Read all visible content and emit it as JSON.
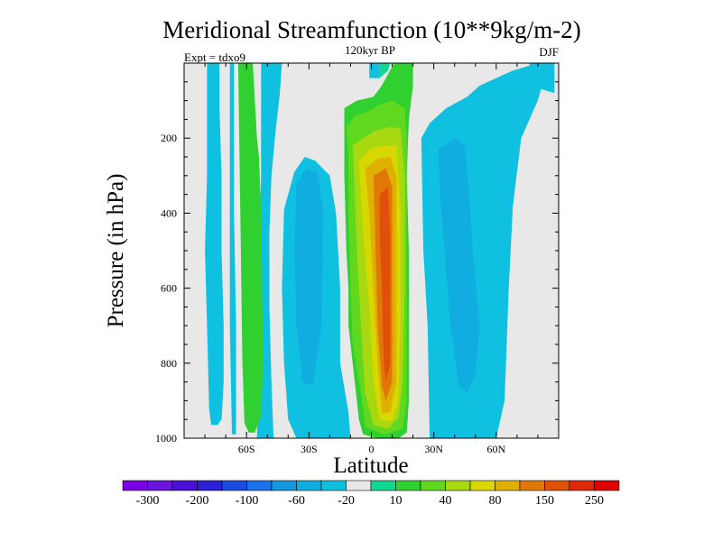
{
  "chart_data": {
    "type": "heatmap",
    "title": "Meridional Streamfunction (10**9kg/m-2)",
    "center_label": "120kyr BP",
    "left_label": "Expt = tdxo9",
    "right_label": "DJF",
    "xlabel": "Latitude",
    "ylabel": "Pressure (in hPa)",
    "xlim": [
      -90,
      90
    ],
    "ylim": [
      0,
      1000
    ],
    "y_reversed": true,
    "x_ticks": [
      {
        "value": -60,
        "label": "60S"
      },
      {
        "value": -30,
        "label": "30S"
      },
      {
        "value": 0,
        "label": "0"
      },
      {
        "value": 30,
        "label": "30N"
      },
      {
        "value": 60,
        "label": "60N"
      }
    ],
    "y_ticks": [
      {
        "value": 200,
        "label": "200"
      },
      {
        "value": 400,
        "label": "400"
      },
      {
        "value": 600,
        "label": "600"
      },
      {
        "value": 800,
        "label": "800"
      },
      {
        "value": 1000,
        "label": "1000"
      }
    ],
    "colorbar": {
      "colors": [
        "#7a00e6",
        "#6a14e0",
        "#4b10d8",
        "#2b20d8",
        "#1a4ae0",
        "#1a73e8",
        "#1596e0",
        "#10aee0",
        "#10c0e0",
        "#e8e8e8",
        "#10d890",
        "#30d030",
        "#60d820",
        "#a8d810",
        "#d8d800",
        "#e0b000",
        "#e07808",
        "#e05008",
        "#e02808",
        "#e00000"
      ],
      "labels": [
        {
          "boundary": 1,
          "label": "-300"
        },
        {
          "boundary": 3,
          "label": "-200"
        },
        {
          "boundary": 5,
          "label": "-100"
        },
        {
          "boundary": 7,
          "label": "-60"
        },
        {
          "boundary": 9,
          "label": "-20"
        },
        {
          "boundary": 11,
          "label": "10"
        },
        {
          "boundary": 13,
          "label": "40"
        },
        {
          "boundary": 15,
          "label": "80"
        },
        {
          "boundary": 17,
          "label": "150"
        },
        {
          "boundary": 19,
          "label": "250"
        }
      ]
    },
    "colors": {
      "background": "#e8e8e8",
      "neg_weak": "#10c0e0",
      "neg_mid": "#10aee0",
      "pos_weak": "#30d030",
      "pos_teal": "#10d890",
      "pos_yellowgreen": "#a8d810",
      "pos_lime": "#60d820",
      "pos_yellow": "#d8d800",
      "pos_gold": "#e0b000",
      "pos_orange": "#e07808",
      "pos_redorange": "#e05008"
    },
    "regions": [
      {
        "name": "neg-band-80s",
        "color": "neg_weak",
        "points": [
          [
            -79,
            0
          ],
          [
            -73,
            0
          ],
          [
            -73,
            120
          ],
          [
            -72,
            300
          ],
          [
            -72,
            500
          ],
          [
            -71,
            700
          ],
          [
            -71,
            850
          ],
          [
            -72,
            950
          ],
          [
            -74,
            965
          ],
          [
            -77,
            965
          ],
          [
            -78,
            920
          ],
          [
            -79,
            700
          ],
          [
            -80,
            500
          ],
          [
            -79,
            300
          ]
        ]
      },
      {
        "name": "neg-strip-65s",
        "color": "neg_weak",
        "points": [
          [
            -68,
            0
          ],
          [
            -66,
            0
          ],
          [
            -66,
            400
          ],
          [
            -65,
            700
          ],
          [
            -65,
            990
          ],
          [
            -67,
            990
          ],
          [
            -68,
            700
          ]
        ]
      },
      {
        "name": "neg-band-45s",
        "color": "neg_weak",
        "points": [
          [
            -53,
            0
          ],
          [
            -43,
            0
          ],
          [
            -44,
            80
          ],
          [
            -46,
            180
          ],
          [
            -48,
            300
          ],
          [
            -49,
            450
          ],
          [
            -49,
            650
          ],
          [
            -48,
            850
          ],
          [
            -47,
            1000
          ],
          [
            -55,
            1000
          ],
          [
            -54,
            800
          ],
          [
            -54,
            500
          ],
          [
            -53,
            300
          ]
        ]
      },
      {
        "name": "neg-band-25s",
        "color": "neg_weak",
        "points": [
          [
            -42,
            390
          ],
          [
            -37,
            290
          ],
          [
            -32,
            250
          ],
          [
            -27,
            260
          ],
          [
            -20,
            300
          ],
          [
            -17,
            400
          ],
          [
            -15,
            600
          ],
          [
            -15,
            800
          ],
          [
            -11,
            930
          ],
          [
            -10,
            1000
          ],
          [
            -36,
            1000
          ],
          [
            -40,
            950
          ],
          [
            -42,
            800
          ],
          [
            -43,
            600
          ]
        ]
      },
      {
        "name": "neg-core-25s",
        "color": "neg_mid",
        "points": [
          [
            -36,
            320
          ],
          [
            -31,
            280
          ],
          [
            -26,
            290
          ],
          [
            -23,
            400
          ],
          [
            -24,
            700
          ],
          [
            -28,
            860
          ],
          [
            -33,
            850
          ],
          [
            -36,
            700
          ],
          [
            -37,
            500
          ]
        ]
      },
      {
        "name": "neg-patch-0",
        "color": "neg_weak",
        "points": [
          [
            -1,
            0
          ],
          [
            4,
            0
          ],
          [
            4,
            40
          ],
          [
            -1,
            40
          ]
        ]
      },
      {
        "name": "neg-band-35n",
        "color": "neg_weak",
        "points": [
          [
            24,
            200
          ],
          [
            28,
            160
          ],
          [
            36,
            120
          ],
          [
            46,
            90
          ],
          [
            52,
            60
          ],
          [
            60,
            40
          ],
          [
            68,
            20
          ],
          [
            80,
            0
          ],
          [
            85,
            0
          ],
          [
            80,
            100
          ],
          [
            72,
            200
          ],
          [
            68,
            380
          ],
          [
            66,
            600
          ],
          [
            64,
            900
          ],
          [
            60,
            1000
          ],
          [
            28,
            1000
          ],
          [
            27,
            700
          ],
          [
            25,
            500
          ]
        ]
      },
      {
        "name": "neg-core-45n",
        "color": "neg_mid",
        "points": [
          [
            32,
            230
          ],
          [
            40,
            200
          ],
          [
            45,
            220
          ],
          [
            47,
            350
          ],
          [
            49,
            520
          ],
          [
            52,
            700
          ],
          [
            50,
            830
          ],
          [
            46,
            880
          ],
          [
            42,
            860
          ],
          [
            38,
            700
          ],
          [
            35,
            500
          ],
          [
            33,
            350
          ]
        ]
      },
      {
        "name": "neg-strip-90n",
        "color": "neg_weak",
        "points": [
          [
            76,
            0
          ],
          [
            88,
            0
          ],
          [
            88,
            80
          ],
          [
            76,
            60
          ]
        ]
      },
      {
        "name": "pos-band-60s",
        "color": "pos_weak",
        "points": [
          [
            -64,
            0
          ],
          [
            -57,
            0
          ],
          [
            -56,
            100
          ],
          [
            -55,
            200
          ],
          [
            -54,
            250
          ],
          [
            -53,
            400
          ],
          [
            -52,
            800
          ],
          [
            -53,
            940
          ],
          [
            -56,
            985
          ],
          [
            -59,
            985
          ],
          [
            -61,
            960
          ],
          [
            -62,
            800
          ],
          [
            -63,
            400
          ]
        ]
      },
      {
        "name": "pos-outer",
        "color": "pos_weak",
        "points": [
          [
            -13,
            120
          ],
          [
            -7,
            100
          ],
          [
            1,
            90
          ],
          [
            5,
            60
          ],
          [
            9,
            20
          ],
          [
            11,
            0
          ],
          [
            20,
            0
          ],
          [
            20,
            60
          ],
          [
            18,
            150
          ],
          [
            17,
            300
          ],
          [
            18,
            500
          ],
          [
            18,
            700
          ],
          [
            18,
            900
          ],
          [
            17,
            985
          ],
          [
            13,
            1000
          ],
          [
            3,
            1000
          ],
          [
            -4,
            990
          ],
          [
            -6,
            950
          ],
          [
            -8,
            850
          ],
          [
            -11,
            700
          ],
          [
            -11,
            600
          ],
          [
            -12,
            500
          ],
          [
            -13,
            300
          ]
        ]
      },
      {
        "name": "pos-teal",
        "color": "pos_teal",
        "points": [
          [
            4,
            0
          ],
          [
            9,
            0
          ],
          [
            8,
            20
          ],
          [
            4,
            40
          ]
        ]
      },
      {
        "name": "pos-lime",
        "color": "pos_lime",
        "points": [
          [
            -12,
            170
          ],
          [
            -8,
            140
          ],
          [
            -2,
            130
          ],
          [
            4,
            110
          ],
          [
            10,
            100
          ],
          [
            16,
            120
          ],
          [
            17,
            200
          ],
          [
            17,
            400
          ],
          [
            17,
            700
          ],
          [
            17,
            900
          ],
          [
            15,
            975
          ],
          [
            6,
            990
          ],
          [
            -3,
            970
          ],
          [
            -5,
            880
          ],
          [
            -9,
            750
          ],
          [
            -10,
            600
          ],
          [
            -11,
            400
          ],
          [
            -11,
            250
          ]
        ]
      },
      {
        "name": "pos-yellowgreen",
        "color": "pos_yellowgreen",
        "points": [
          [
            -9,
            220
          ],
          [
            -4,
            200
          ],
          [
            2,
            180
          ],
          [
            9,
            170
          ],
          [
            14,
            175
          ],
          [
            16,
            300
          ],
          [
            16,
            600
          ],
          [
            15,
            850
          ],
          [
            13,
            945
          ],
          [
            8,
            975
          ],
          [
            1,
            965
          ],
          [
            -3,
            880
          ],
          [
            -5,
            700
          ],
          [
            -7,
            500
          ],
          [
            -8,
            350
          ]
        ]
      },
      {
        "name": "pos-yellow",
        "color": "pos_yellow",
        "points": [
          [
            -6,
            260
          ],
          [
            -1,
            230
          ],
          [
            5,
            220
          ],
          [
            12,
            220
          ],
          [
            14,
            400
          ],
          [
            14,
            700
          ],
          [
            13,
            900
          ],
          [
            10,
            955
          ],
          [
            4,
            950
          ],
          [
            1,
            850
          ],
          [
            -1,
            650
          ],
          [
            -4,
            450
          ]
        ]
      },
      {
        "name": "pos-gold",
        "color": "pos_gold",
        "points": [
          [
            -3,
            280
          ],
          [
            3,
            255
          ],
          [
            9,
            250
          ],
          [
            12,
            300
          ],
          [
            12,
            600
          ],
          [
            12,
            850
          ],
          [
            9,
            930
          ],
          [
            5,
            935
          ],
          [
            3,
            800
          ],
          [
            1,
            600
          ],
          [
            -1,
            400
          ]
        ]
      },
      {
        "name": "pos-orange",
        "color": "pos_orange",
        "points": [
          [
            1,
            300
          ],
          [
            7,
            280
          ],
          [
            10,
            330
          ],
          [
            10,
            600
          ],
          [
            10,
            850
          ],
          [
            7,
            900
          ],
          [
            5,
            860
          ],
          [
            3,
            700
          ],
          [
            2,
            500
          ]
        ]
      },
      {
        "name": "pos-redorange",
        "color": "pos_redorange",
        "points": [
          [
            4,
            350
          ],
          [
            8,
            330
          ],
          [
            9,
            450
          ],
          [
            9,
            800
          ],
          [
            7,
            850
          ],
          [
            6,
            800
          ],
          [
            5,
            600
          ],
          [
            4,
            450
          ]
        ]
      }
    ]
  }
}
